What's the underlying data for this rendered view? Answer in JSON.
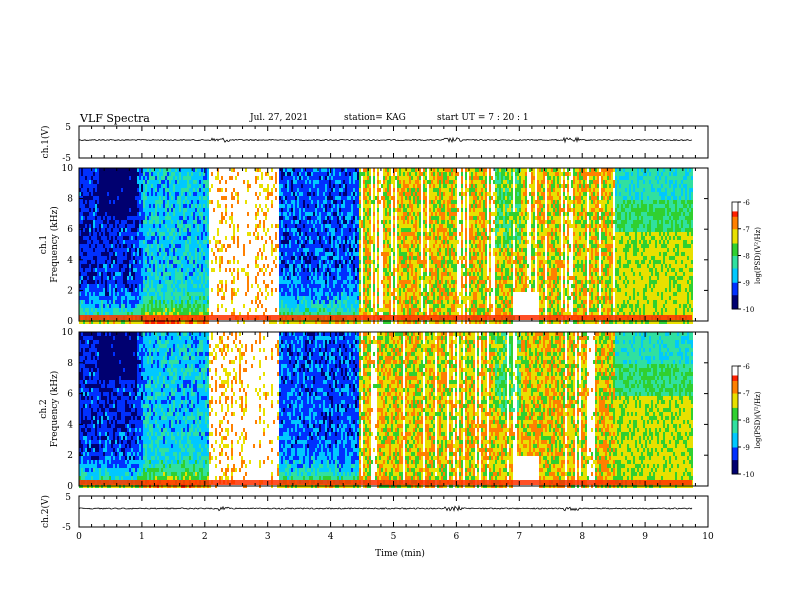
{
  "header": {
    "title": "VLF Spectra",
    "date": "Jul. 27, 2021",
    "station": "station= KAG",
    "start": "start UT = 7 : 20 : 1"
  },
  "chart_data": [
    {
      "type": "line",
      "panel": "waveform-ch1",
      "ylabel": "ch.1(V)",
      "yticks": [
        "5",
        "-5"
      ],
      "ylim": [
        -5,
        5
      ],
      "xlim": [
        0,
        10
      ]
    },
    {
      "type": "heatmap",
      "panel": "spectrogram-ch1",
      "ylabel_line1": "ch.1",
      "ylabel_line2": "Frequency (kHz)",
      "yticks": [
        "0",
        "2",
        "4",
        "6",
        "8",
        "10"
      ],
      "ylim": [
        0,
        10
      ],
      "xlim": [
        0,
        10
      ],
      "colorbar": {
        "label": "log(PSD)(V²/Hz)",
        "ticks": [
          "-6",
          "-7",
          "-8",
          "-9",
          "-10"
        ],
        "range": [
          -10,
          -6
        ]
      }
    },
    {
      "type": "heatmap",
      "panel": "spectrogram-ch2",
      "ylabel_line1": "ch.2",
      "ylabel_line2": "Frequency (kHz)",
      "yticks": [
        "0",
        "2",
        "4",
        "6",
        "8",
        "10"
      ],
      "ylim": [
        0,
        10
      ],
      "xlim": [
        0,
        10
      ],
      "colorbar": {
        "label": "log(PSD)(V²/Hz)",
        "ticks": [
          "-6",
          "-7",
          "-8",
          "-9",
          "-10"
        ],
        "range": [
          -10,
          -6
        ]
      }
    },
    {
      "type": "line",
      "panel": "waveform-ch2",
      "ylabel": "ch.2(V)",
      "yticks": [
        "5",
        "-5"
      ],
      "ylim": [
        -5,
        5
      ],
      "xlim": [
        0,
        10
      ],
      "xticks": [
        "0",
        "1",
        "2",
        "3",
        "4",
        "5",
        "6",
        "7",
        "8",
        "9",
        "10"
      ],
      "xlabel": "Time (min)"
    }
  ],
  "palette": {
    "colormap": [
      "#000070",
      "#0030ff",
      "#00c8ff",
      "#30e0a0",
      "#30d030",
      "#e8e000",
      "#ff8000",
      "#ff2000",
      "#ffffff"
    ]
  }
}
